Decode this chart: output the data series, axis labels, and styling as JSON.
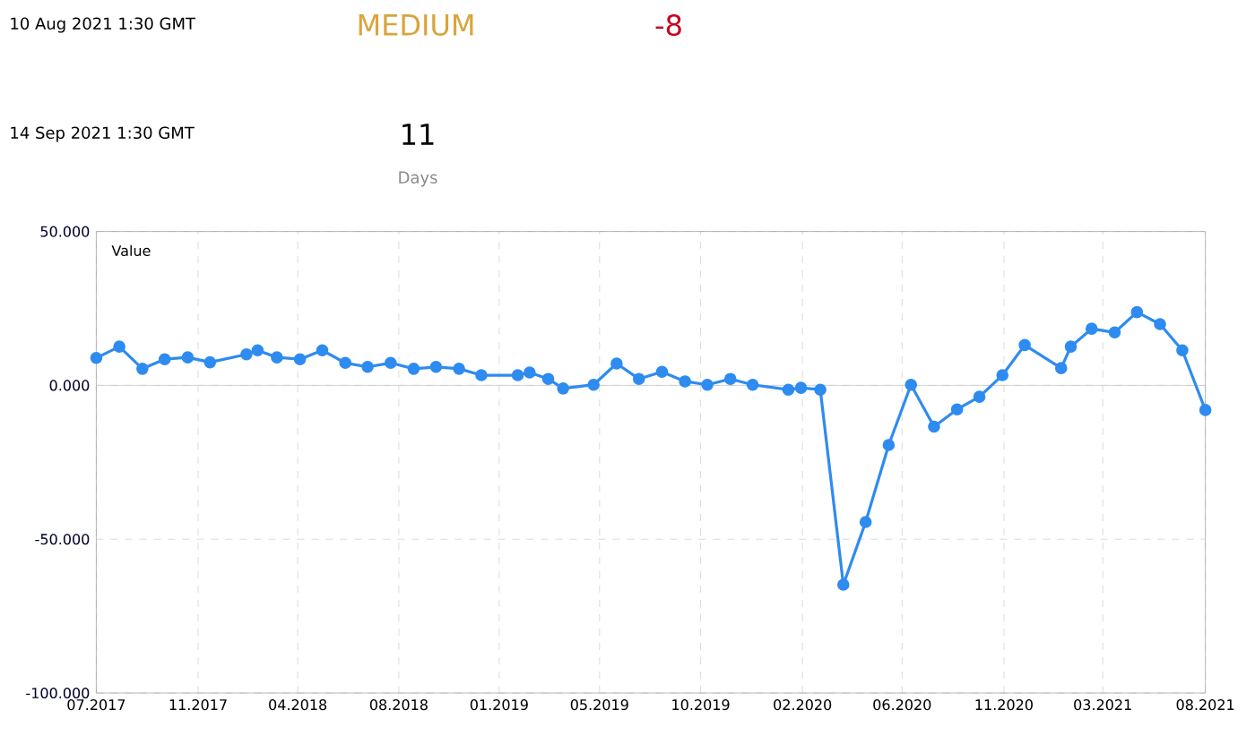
{
  "chart_data": {
    "type": "line",
    "ylabel": "Value",
    "annotations": [
      "10 Aug 2021 1:30 GMT",
      "MEDIUM",
      "-8",
      "14 Sep 2021 1:30 GMT",
      "11",
      "Days"
    ],
    "x": [
      "2017-07-10",
      "2017-08-10",
      "2017-09-10",
      "2017-10-10",
      "2017-11-10",
      "2017-12-10",
      "2018-01-28",
      "2018-02-12",
      "2018-03-10",
      "2018-04-10",
      "2018-05-10",
      "2018-06-10",
      "2018-07-10",
      "2018-08-10",
      "2018-09-10",
      "2018-10-10",
      "2018-11-10",
      "2018-12-10",
      "2019-01-28",
      "2019-02-13",
      "2019-03-10",
      "2019-03-30",
      "2019-05-10",
      "2019-06-10",
      "2019-07-10",
      "2019-08-10",
      "2019-09-10",
      "2019-10-10",
      "2019-11-10",
      "2019-12-10",
      "2020-01-27",
      "2020-02-13",
      "2020-03-10",
      "2020-04-10",
      "2020-05-10",
      "2020-06-10",
      "2020-07-10",
      "2020-08-10",
      "2020-09-10",
      "2020-10-10",
      "2020-11-10",
      "2020-12-10",
      "2021-01-28",
      "2021-02-10",
      "2021-03-10",
      "2021-04-10",
      "2021-05-10",
      "2021-06-10",
      "2021-07-10",
      "2021-08-10"
    ],
    "series": [
      {
        "color": "#2e8bf0",
        "values": [
          8.9,
          12.6,
          5.4,
          8.5,
          9.1,
          7.5,
          10.1,
          11.4,
          9.1,
          8.5,
          11.4,
          7.3,
          6.0,
          7.3,
          5.4,
          6.0,
          5.4,
          3.3,
          3.3,
          4.2,
          2.1,
          -1.0,
          0.2,
          7.1,
          2.1,
          4.4,
          1.3,
          0.2,
          2.1,
          0.2,
          -1.4,
          -0.8,
          -1.4,
          -64.8,
          -44.4,
          -19.4,
          0.2,
          -13.4,
          -7.8,
          -3.7,
          3.3,
          13.1,
          5.6,
          12.6,
          18.4,
          17.2,
          23.8,
          19.9,
          11.4,
          -8
        ]
      }
    ],
    "xlim": [
      "2017-07-10",
      "2021-08-10"
    ],
    "xticks": [
      {
        "value": "2017-07-10",
        "label": "07.2017"
      },
      {
        "value": "2017-11-24",
        "label": "11.2017"
      },
      {
        "value": "2018-04-07",
        "label": "04.2018"
      },
      {
        "value": "2018-08-21",
        "label": "08.2018"
      },
      {
        "value": "2019-01-03",
        "label": "01.2019"
      },
      {
        "value": "2019-05-18",
        "label": "05.2019"
      },
      {
        "value": "2019-10-01",
        "label": "10.2019"
      },
      {
        "value": "2020-02-15",
        "label": "02.2020"
      },
      {
        "value": "2020-06-28",
        "label": "06.2020"
      },
      {
        "value": "2020-11-12",
        "label": "11.2020"
      },
      {
        "value": "2021-03-25",
        "label": "03.2021"
      },
      {
        "value": "2021-08-10",
        "label": "08.2021"
      }
    ],
    "ylim": [
      -100,
      50
    ],
    "yticks": [
      {
        "value": -100,
        "label": "-100.000"
      },
      {
        "value": -50,
        "label": "-50.000"
      },
      {
        "value": 0,
        "label": "0.000"
      },
      {
        "value": 50,
        "label": "50.000"
      }
    ],
    "grid": true,
    "marker": "circle",
    "line_style": "solid"
  }
}
